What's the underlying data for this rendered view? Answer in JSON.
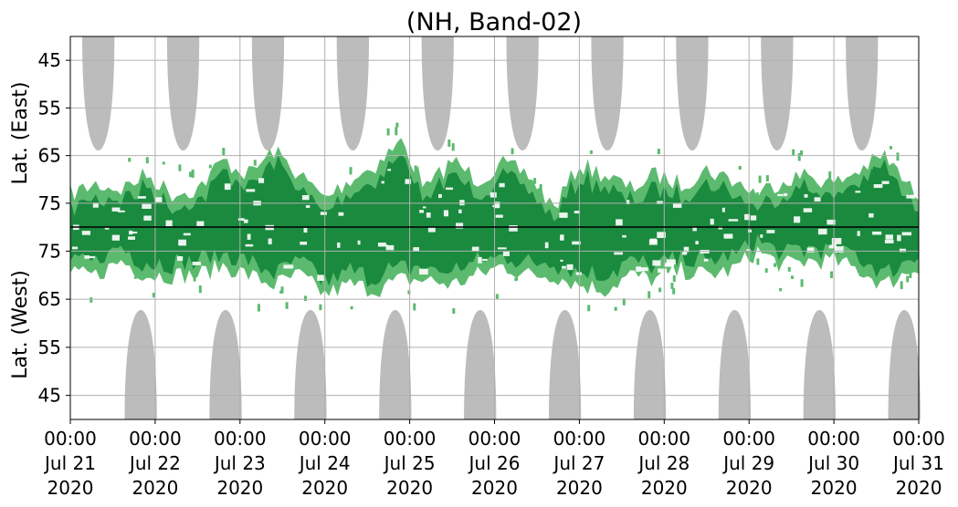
{
  "chart_data": {
    "type": "heatmap",
    "title": "(NH, Band-02)",
    "ylabel_upper": "Lat. (East)",
    "ylabel_lower": "Lat. (West)",
    "upper_ticks": [
      "45",
      "55",
      "65",
      "75"
    ],
    "lower_ticks": [
      "75",
      "65",
      "55",
      "45"
    ],
    "upper_tick_values": [
      45,
      55,
      65,
      75
    ],
    "lower_tick_values": [
      75,
      65,
      55,
      45
    ],
    "lat_range": [
      40,
      80
    ],
    "x_range_days": [
      0,
      10
    ],
    "x_ticks": [
      {
        "time": "00:00",
        "date": "Jul 21",
        "year": "2020"
      },
      {
        "time": "00:00",
        "date": "Jul 22",
        "year": "2020"
      },
      {
        "time": "00:00",
        "date": "Jul 23",
        "year": "2020"
      },
      {
        "time": "00:00",
        "date": "Jul 24",
        "year": "2020"
      },
      {
        "time": "00:00",
        "date": "Jul 25",
        "year": "2020"
      },
      {
        "time": "00:00",
        "date": "Jul 26",
        "year": "2020"
      },
      {
        "time": "00:00",
        "date": "Jul 27",
        "year": "2020"
      },
      {
        "time": "00:00",
        "date": "Jul 28",
        "year": "2020"
      },
      {
        "time": "00:00",
        "date": "Jul 29",
        "year": "2020"
      },
      {
        "time": "00:00",
        "date": "Jul 30",
        "year": "2020"
      },
      {
        "time": "00:00",
        "date": "Jul 31",
        "year": "2020"
      }
    ],
    "grid": true,
    "colors": {
      "dark_green": "#1a8a3e",
      "light_green": "#5cba6f",
      "gray_mask": "#bcbcbc",
      "grid": "#b0b0b0",
      "separator": "#000000"
    },
    "east_gray_centers_day": [
      0.33,
      1.33,
      2.33,
      3.33,
      4.33,
      5.33,
      6.33,
      7.33,
      8.33,
      9.33
    ],
    "west_gray_centers_day": [
      0.83,
      1.83,
      2.83,
      3.83,
      4.83,
      5.83,
      6.83,
      7.83,
      8.83,
      9.83
    ],
    "east_outer_edge_lat": [
      [
        0.0,
        73
      ],
      [
        0.3,
        71
      ],
      [
        0.6,
        72
      ],
      [
        0.9,
        69
      ],
      [
        1.2,
        73
      ],
      [
        1.5,
        72
      ],
      [
        1.8,
        66
      ],
      [
        2.1,
        69
      ],
      [
        2.4,
        64
      ],
      [
        2.7,
        69
      ],
      [
        3.0,
        74
      ],
      [
        3.3,
        70
      ],
      [
        3.6,
        67
      ],
      [
        3.9,
        62
      ],
      [
        4.2,
        72
      ],
      [
        4.5,
        66
      ],
      [
        4.8,
        70
      ],
      [
        5.1,
        67
      ],
      [
        5.4,
        69
      ],
      [
        5.7,
        76
      ],
      [
        6.0,
        67
      ],
      [
        6.3,
        69
      ],
      [
        6.6,
        72
      ],
      [
        6.9,
        69
      ],
      [
        7.2,
        71
      ],
      [
        7.5,
        68
      ],
      [
        7.8,
        70
      ],
      [
        8.1,
        73
      ],
      [
        8.4,
        70
      ],
      [
        8.7,
        69
      ],
      [
        9.0,
        71
      ],
      [
        9.3,
        68
      ],
      [
        9.6,
        65
      ],
      [
        9.9,
        72
      ],
      [
        10.0,
        73
      ]
    ],
    "west_outer_edge_lat": [
      [
        0.0,
        70
      ],
      [
        0.3,
        70
      ],
      [
        0.6,
        73
      ],
      [
        0.9,
        70
      ],
      [
        1.2,
        70
      ],
      [
        1.5,
        70
      ],
      [
        1.8,
        72
      ],
      [
        2.1,
        70
      ],
      [
        2.4,
        68
      ],
      [
        2.7,
        70
      ],
      [
        3.0,
        66
      ],
      [
        3.3,
        68
      ],
      [
        3.6,
        67
      ],
      [
        3.9,
        69
      ],
      [
        4.2,
        69
      ],
      [
        4.5,
        68
      ],
      [
        4.8,
        70
      ],
      [
        5.1,
        72
      ],
      [
        5.4,
        70
      ],
      [
        5.7,
        70
      ],
      [
        6.0,
        68
      ],
      [
        6.3,
        67
      ],
      [
        6.6,
        70
      ],
      [
        6.9,
        69
      ],
      [
        7.2,
        71
      ],
      [
        7.5,
        70
      ],
      [
        7.8,
        71
      ],
      [
        8.1,
        75
      ],
      [
        8.4,
        72
      ],
      [
        8.7,
        73
      ],
      [
        9.0,
        73
      ],
      [
        9.3,
        71
      ],
      [
        9.6,
        68
      ],
      [
        9.9,
        71
      ],
      [
        10.0,
        72
      ]
    ]
  }
}
